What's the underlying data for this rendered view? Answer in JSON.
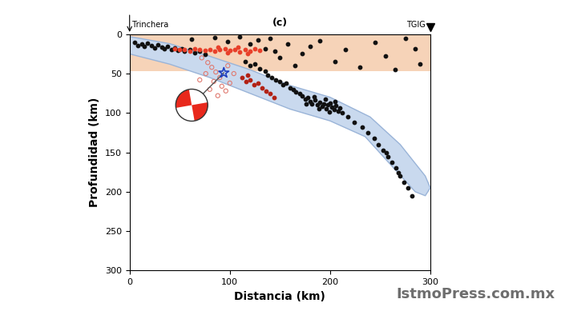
{
  "chart_data": {
    "type": "scatter",
    "title": "(c)",
    "x_label": "Distancia (km)",
    "y_label": "Profundidad (km)",
    "xlim": [
      0,
      300
    ],
    "ylim": [
      300,
      0
    ],
    "xticks": [
      0,
      100,
      200,
      300
    ],
    "yticks": [
      0,
      50,
      100,
      150,
      200,
      250,
      300
    ],
    "grid": false,
    "trench": {
      "name": "Trinchera",
      "x": 0
    },
    "station": {
      "name": "TGIG",
      "x": 300,
      "marker": "v",
      "color": "#000000"
    },
    "watermark": "IstmoPress.com.mx",
    "bands": [
      {
        "color": "#f6d3b8",
        "y": [
          0,
          47
        ]
      }
    ],
    "slab_outline": {
      "color": "#c9d9ee",
      "x": [
        0,
        40,
        80,
        120,
        160,
        200,
        240,
        270,
        295,
        300,
        295,
        285,
        260,
        235,
        200,
        160,
        120,
        80,
        40,
        0
      ],
      "y": [
        3,
        12,
        28,
        45,
        65,
        80,
        105,
        140,
        180,
        195,
        205,
        200,
        165,
        130,
        110,
        95,
        75,
        55,
        38,
        25
      ]
    },
    "series": [
      {
        "color": "#111111",
        "marker": "o",
        "x": [
          5,
          8,
          12,
          15,
          18,
          22,
          25,
          28,
          32,
          35,
          38,
          42,
          45,
          48,
          52,
          55,
          60,
          65,
          70,
          75,
          62,
          85,
          98,
          110,
          120,
          128,
          135,
          140,
          145,
          150,
          158,
          165,
          172,
          180,
          190,
          205,
          215,
          230,
          245,
          255,
          265,
          275,
          285,
          290,
          115,
          120,
          125,
          130,
          135,
          138,
          142,
          146,
          150,
          153,
          156,
          160,
          163,
          166,
          170,
          172,
          175,
          178,
          180,
          182,
          185,
          187,
          190,
          192,
          194,
          196,
          198,
          200,
          202,
          204,
          206,
          208,
          210,
          212,
          176,
          184,
          189,
          199,
          205,
          195,
          218,
          224,
          232,
          238,
          244,
          248,
          253,
          258,
          262,
          266,
          270,
          274,
          278,
          282,
          256,
          268
        ],
        "y": [
          10,
          14,
          12,
          15,
          11,
          14,
          17,
          13,
          16,
          18,
          15,
          19,
          17,
          21,
          18,
          22,
          20,
          24,
          22,
          26,
          6,
          4,
          9,
          3,
          12,
          7,
          18,
          5,
          22,
          30,
          12,
          40,
          25,
          15,
          8,
          35,
          20,
          42,
          10,
          28,
          45,
          5,
          18,
          38,
          35,
          40,
          38,
          44,
          47,
          52,
          55,
          58,
          60,
          64,
          62,
          68,
          70,
          73,
          75,
          78,
          82,
          80,
          85,
          88,
          83,
          90,
          86,
          92,
          88,
          95,
          90,
          87,
          93,
          96,
          91,
          98,
          94,
          100,
          88,
          79,
          95,
          99,
          85,
          82,
          105,
          112,
          118,
          125,
          132,
          140,
          147,
          155,
          163,
          170,
          180,
          188,
          195,
          205,
          150,
          176
        ]
      },
      {
        "color": "#e8402a",
        "marker": "o",
        "x": [
          45,
          50,
          55,
          60,
          65,
          70,
          75,
          80,
          85,
          90,
          95,
          100,
          105,
          110,
          115,
          120,
          125,
          130,
          88,
          98,
          108,
          118
        ],
        "y": [
          18,
          20,
          19,
          22,
          18,
          20,
          21,
          19,
          22,
          20,
          18,
          21,
          19,
          23,
          20,
          22,
          18,
          21,
          16,
          24,
          16,
          25
        ]
      },
      {
        "color": "#b22215",
        "marker": "o",
        "x": [
          112,
          116,
          120,
          124,
          128,
          132,
          136,
          140,
          144,
          118
        ],
        "y": [
          55,
          60,
          58,
          64,
          62,
          68,
          72,
          75,
          80,
          52
        ]
      },
      {
        "color": "#e07a70",
        "marker": "open_circle",
        "x": [
          72,
          78,
          82,
          86,
          90,
          76,
          84,
          92,
          96,
          80,
          100,
          88,
          70,
          98,
          104
        ],
        "y": [
          30,
          36,
          42,
          48,
          55,
          50,
          60,
          66,
          72,
          70,
          62,
          78,
          58,
          40,
          50
        ]
      }
    ],
    "mainshock": {
      "x": 94,
      "y": 49,
      "color": "#1f3fbf",
      "marker": "star"
    },
    "focal_mechanism": {
      "x": 62,
      "y": 90,
      "color": "#e8281c"
    }
  }
}
